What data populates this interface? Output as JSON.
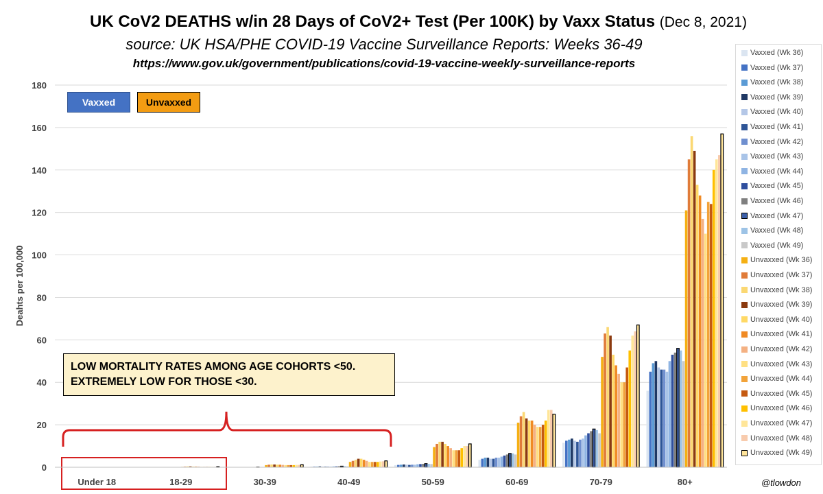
{
  "title": {
    "main": "UK CoV2 DEATHS w/in 28 Days of CoV2+ Test (Per 100K) by Vaxx Status",
    "date": "(Dec 8, 2021)",
    "subtitle": "source: UK HSA/PHE COVID-19 Vaccine Surveillance Reports: Weeks 36-49",
    "url": "https://www.gov.uk/government/publications/covid-19-vaccine-weekly-surveillance-reports"
  },
  "key": {
    "vaxxed": "Vaxxed",
    "unvaxxed": "Unvaxxed"
  },
  "annotation": {
    "line1": "LOW MORTALITY RATES AMONG AGE COHORTS <50.",
    "line2": "EXTREMELY LOW FOR THOSE <30."
  },
  "handle": "@tlowdon",
  "colors": {
    "vaxxed": [
      "#dbe5f1",
      "#4472c4",
      "#5b9bd5",
      "#1f3864",
      "#b4c7e7",
      "#2e5597",
      "#6f8fcf",
      "#a9c4e8",
      "#8fb4e3",
      "#2f4f9e",
      "#7f7f7f",
      "#3c5fa8",
      "#9dc3e6",
      "#c9c9c9"
    ],
    "unvaxxed": [
      "#f5b014",
      "#e07b39",
      "#fbd873",
      "#8b3a0f",
      "#ffd966",
      "#f08a24",
      "#f4b183",
      "#ffe083",
      "#f2a33a",
      "#c55a11",
      "#ffc000",
      "#ffe699",
      "#f8cbad",
      "#ffe49a"
    ],
    "annotation_bracket": "#d62020",
    "note_fill": "#fdf2cc"
  },
  "chart_data": {
    "type": "bar",
    "title": "UK CoV2 DEATHS w/in 28 Days of CoV2+ Test (Per 100K) by Vaxx Status",
    "xlabel": "",
    "ylabel": "Deahts per 100,000",
    "ylim": [
      0,
      180
    ],
    "yticks": [
      0,
      20,
      40,
      60,
      80,
      100,
      120,
      140,
      160,
      180
    ],
    "grid": true,
    "legend_position": "right",
    "categories": [
      "Under 18",
      "18-29",
      "30-39",
      "40-49",
      "50-59",
      "60-69",
      "70-79",
      "80+"
    ],
    "series": [
      {
        "name": "Vaxxed (Wk 36)",
        "group": "vaxxed",
        "values": [
          0,
          0,
          0.1,
          0.3,
          1.0,
          3.5,
          11.5,
          36
        ]
      },
      {
        "name": "Vaxxed (Wk 37)",
        "group": "vaxxed",
        "values": [
          0,
          0,
          0.1,
          0.3,
          1.1,
          4.0,
          12.5,
          45
        ]
      },
      {
        "name": "Vaxxed (Wk 38)",
        "group": "vaxxed",
        "values": [
          0,
          0,
          0.1,
          0.3,
          1.2,
          4.5,
          13.0,
          49
        ]
      },
      {
        "name": "Vaxxed (Wk 39)",
        "group": "vaxxed",
        "values": [
          0,
          0,
          0.1,
          0.4,
          1.3,
          4.5,
          13.5,
          50
        ]
      },
      {
        "name": "Vaxxed (Wk 40)",
        "group": "vaxxed",
        "values": [
          0,
          0,
          0.1,
          0.3,
          1.2,
          4.0,
          12.5,
          47
        ]
      },
      {
        "name": "Vaxxed (Wk 41)",
        "group": "vaxxed",
        "values": [
          0,
          0,
          0.1,
          0.3,
          1.1,
          4.0,
          12.0,
          46
        ]
      },
      {
        "name": "Vaxxed (Wk 42)",
        "group": "vaxxed",
        "values": [
          0,
          0,
          0.1,
          0.3,
          1.2,
          4.5,
          13.0,
          46
        ]
      },
      {
        "name": "Vaxxed (Wk 43)",
        "group": "vaxxed",
        "values": [
          0,
          0,
          0.1,
          0.3,
          1.2,
          4.5,
          13.5,
          45
        ]
      },
      {
        "name": "Vaxxed (Wk 44)",
        "group": "vaxxed",
        "values": [
          0,
          0,
          0.1,
          0.4,
          1.4,
          5.0,
          15.0,
          50
        ]
      },
      {
        "name": "Vaxxed (Wk 45)",
        "group": "vaxxed",
        "values": [
          0,
          0,
          0.1,
          0.4,
          1.5,
          5.5,
          16.0,
          53
        ]
      },
      {
        "name": "Vaxxed (Wk 46)",
        "group": "vaxxed",
        "values": [
          0,
          0,
          0.1,
          0.5,
          1.6,
          6.0,
          17.0,
          54
        ]
      },
      {
        "name": "Vaxxed (Wk 47)",
        "group": "vaxxed",
        "values": [
          0,
          0,
          0.1,
          0.5,
          1.7,
          6.5,
          18.0,
          56
        ]
      },
      {
        "name": "Vaxxed (Wk 48)",
        "group": "vaxxed",
        "values": [
          0,
          0,
          0.1,
          0.5,
          1.6,
          6.5,
          17.5,
          55
        ]
      },
      {
        "name": "Vaxxed (Wk 49)",
        "group": "vaxxed",
        "values": [
          0,
          0,
          0.1,
          0.4,
          1.5,
          6.0,
          16.0,
          50
        ]
      },
      {
        "name": "Unvaxxed (Wk 36)",
        "group": "unvaxxed",
        "values": [
          0,
          0.2,
          1.0,
          2.5,
          9.5,
          21,
          52,
          121
        ]
      },
      {
        "name": "Unvaxxed (Wk 37)",
        "group": "unvaxxed",
        "values": [
          0,
          0.3,
          1.2,
          3.0,
          11,
          24,
          63,
          145
        ]
      },
      {
        "name": "Unvaxxed (Wk 38)",
        "group": "unvaxxed",
        "values": [
          0,
          0.4,
          1.3,
          3.5,
          12,
          26,
          66,
          156
        ]
      },
      {
        "name": "Unvaxxed (Wk 39)",
        "group": "unvaxxed",
        "values": [
          0,
          0.4,
          1.3,
          4.0,
          12,
          23,
          62,
          149
        ]
      },
      {
        "name": "Unvaxxed (Wk 40)",
        "group": "unvaxxed",
        "values": [
          0,
          0.3,
          1.2,
          4.0,
          11,
          22,
          53,
          133
        ]
      },
      {
        "name": "Unvaxxed (Wk 41)",
        "group": "unvaxxed",
        "values": [
          0,
          0.3,
          1.2,
          3.5,
          10,
          22,
          48,
          128
        ]
      },
      {
        "name": "Unvaxxed (Wk 42)",
        "group": "unvaxxed",
        "values": [
          0,
          0.3,
          1.1,
          3.0,
          9,
          20,
          44,
          117
        ]
      },
      {
        "name": "Unvaxxed (Wk 43)",
        "group": "unvaxxed",
        "values": [
          0,
          0.2,
          1.0,
          2.5,
          8,
          19,
          40,
          110
        ]
      },
      {
        "name": "Unvaxxed (Wk 44)",
        "group": "unvaxxed",
        "values": [
          0,
          0.2,
          1.0,
          2.5,
          8,
          19,
          40,
          125
        ]
      },
      {
        "name": "Unvaxxed (Wk 45)",
        "group": "unvaxxed",
        "values": [
          0,
          0.2,
          1.0,
          2.5,
          8,
          20,
          47,
          124
        ]
      },
      {
        "name": "Unvaxxed (Wk 46)",
        "group": "unvaxxed",
        "values": [
          0,
          0.2,
          1.0,
          2.5,
          9,
          22,
          55,
          140
        ]
      },
      {
        "name": "Unvaxxed (Wk 47)",
        "group": "unvaxxed",
        "values": [
          0,
          0.2,
          1.1,
          2.7,
          10,
          27,
          62,
          145
        ]
      },
      {
        "name": "Unvaxxed (Wk 48)",
        "group": "unvaxxed",
        "values": [
          0,
          0.2,
          1.1,
          2.8,
          10,
          27,
          64,
          147
        ]
      },
      {
        "name": "Unvaxxed (Wk 49)",
        "group": "unvaxxed",
        "values": [
          0,
          0.3,
          1.2,
          3.0,
          11,
          25,
          67,
          157
        ]
      }
    ]
  }
}
